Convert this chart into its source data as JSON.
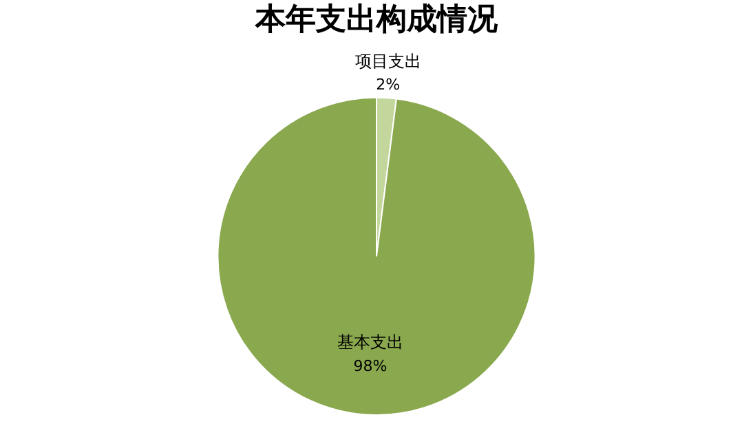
{
  "chart_data": {
    "type": "pie",
    "title": "本年支出构成情况",
    "categories": [
      "项目支出",
      "基本支出"
    ],
    "values": [
      2,
      98
    ],
    "value_labels": [
      "2%",
      "98%"
    ],
    "colors": [
      "#c3d69b",
      "#8aa84e"
    ],
    "legend": false
  }
}
